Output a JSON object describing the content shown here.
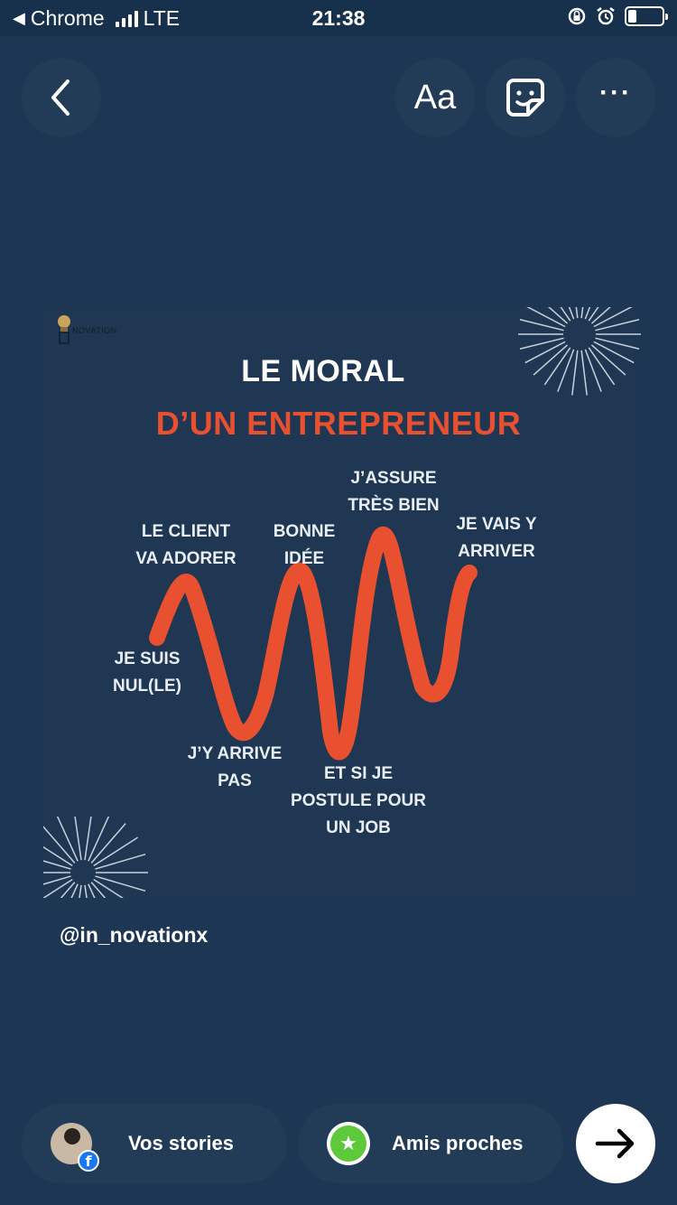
{
  "status_bar": {
    "back_app": "Chrome",
    "network": "LTE",
    "time": "21:38",
    "battery_fraction": 0.25
  },
  "toolbar": {
    "back_icon": "chevron-left-icon",
    "text_tool_label": "Aa",
    "sticker_icon": "sticker-icon",
    "more_label": "···"
  },
  "story": {
    "brand": "NOVATION",
    "title_line1": "LE MORAL",
    "title_line2": "D’UN ENTREPRENEUR",
    "title_line2_color": "#e8502f",
    "labels": {
      "je_suis_1": "JE SUIS",
      "je_suis_2": "NUL(LE)",
      "client_1": "LE CLIENT",
      "client_2": "VA ADORER",
      "arrive_pas_1": "J’Y ARRIVE",
      "arrive_pas_2": "PAS",
      "bonne_1": "BONNE",
      "bonne_2": "IDÉE",
      "postule_1": "ET SI JE",
      "postule_2": "POSTULE POUR",
      "postule_3": "UN JOB",
      "assure_1": "J’ASSURE",
      "assure_2": "TRÈS BIEN",
      "vais_1": "JE VAIS Y",
      "vais_2": "ARRIVER"
    }
  },
  "mention": "@in_novationx",
  "share": {
    "your_story_label": "Vos stories",
    "close_friends_label": "Amis proches",
    "next_icon": "arrow-right-icon"
  },
  "colors": {
    "background": "#1c3654",
    "accent_red": "#e8502f",
    "close_friends_green": "#5ec93b"
  }
}
